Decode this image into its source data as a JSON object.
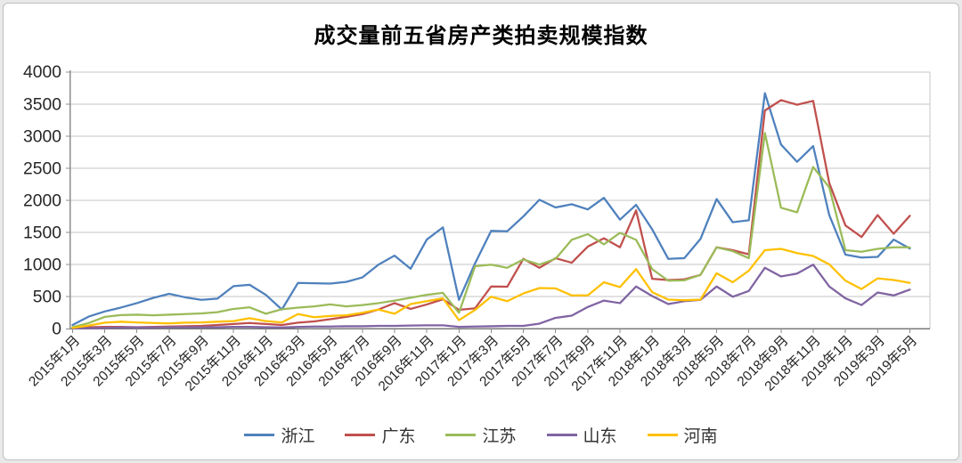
{
  "chart_data": {
    "type": "line",
    "title": "成交量前五省房产类拍卖规模指数",
    "xlabel": "",
    "ylabel": "",
    "ylim": [
      0,
      4000
    ],
    "yticks": [
      0,
      500,
      1000,
      1500,
      2000,
      2500,
      3000,
      3500,
      4000
    ],
    "grid": true,
    "legend_position": "bottom",
    "x_tick_labels": [
      "2015年1月",
      "2015年3月",
      "2015年5月",
      "2015年7月",
      "2015年9月",
      "2015年11月",
      "2016年1月",
      "2016年3月",
      "2016年5月",
      "2016年7月",
      "2016年9月",
      "2016年11月",
      "2017年1月",
      "2017年3月",
      "2017年5月",
      "2017年7月",
      "2017年9月",
      "2017年11月",
      "2018年1月",
      "2018年3月",
      "2018年5月",
      "2018年7月",
      "2018年9月",
      "2018年11月",
      "2019年1月",
      "2019年3月",
      "2019年5月"
    ],
    "x": [
      "2015年1月",
      "2015年2月",
      "2015年3月",
      "2015年4月",
      "2015年5月",
      "2015年6月",
      "2015年7月",
      "2015年8月",
      "2015年9月",
      "2015年10月",
      "2015年11月",
      "2015年12月",
      "2016年1月",
      "2016年2月",
      "2016年3月",
      "2016年4月",
      "2016年5月",
      "2016年6月",
      "2016年7月",
      "2016年8月",
      "2016年9月",
      "2016年10月",
      "2016年11月",
      "2016年12月",
      "2017年1月",
      "2017年2月",
      "2017年3月",
      "2017年4月",
      "2017年5月",
      "2017年6月",
      "2017年7月",
      "2017年8月",
      "2017年9月",
      "2017年10月",
      "2017年11月",
      "2017年12月",
      "2018年1月",
      "2018年2月",
      "2018年3月",
      "2018年4月",
      "2018年5月",
      "2018年6月",
      "2018年7月",
      "2018年8月",
      "2018年9月",
      "2018年10月",
      "2018年11月",
      "2018年12月",
      "2019年1月",
      "2019年2月",
      "2019年3月",
      "2019年4月",
      "2019年5月"
    ],
    "series": [
      {
        "name": "浙江",
        "key": "zhejiang",
        "color": "#4F81BD",
        "values": [
          60,
          190,
          270,
          330,
          400,
          480,
          545,
          490,
          450,
          470,
          665,
          685,
          530,
          300,
          715,
          710,
          705,
          730,
          800,
          1000,
          1140,
          935,
          1390,
          1580,
          450,
          1020,
          1525,
          1520,
          1750,
          2010,
          1890,
          1940,
          1860,
          2040,
          1700,
          1930,
          1550,
          1090,
          1100,
          1400,
          2020,
          1660,
          1690,
          3670,
          2870,
          2600,
          2845,
          1770,
          1155,
          1110,
          1120,
          1390,
          1250
        ]
      },
      {
        "name": "广东",
        "key": "guangdong",
        "color": "#C0504D",
        "values": [
          10,
          25,
          30,
          30,
          25,
          30,
          35,
          40,
          45,
          60,
          75,
          90,
          75,
          60,
          95,
          115,
          150,
          185,
          230,
          300,
          400,
          310,
          380,
          460,
          295,
          320,
          660,
          655,
          1090,
          950,
          1100,
          1030,
          1280,
          1410,
          1270,
          1845,
          780,
          760,
          770,
          840,
          1270,
          1225,
          1160,
          3400,
          3560,
          3490,
          3550,
          2270,
          1610,
          1430,
          1770,
          1480,
          1760
        ]
      },
      {
        "name": "江苏",
        "key": "jiangsu",
        "color": "#9BBB59",
        "values": [
          25,
          90,
          185,
          215,
          220,
          210,
          220,
          230,
          240,
          260,
          310,
          335,
          235,
          305,
          330,
          350,
          380,
          350,
          370,
          400,
          440,
          485,
          530,
          560,
          250,
          975,
          1000,
          950,
          1080,
          1000,
          1090,
          1385,
          1475,
          1315,
          1495,
          1385,
          930,
          750,
          755,
          840,
          1270,
          1210,
          1100,
          3050,
          1885,
          1815,
          2520,
          2200,
          1225,
          1200,
          1245,
          1270,
          1270
        ]
      },
      {
        "name": "山东",
        "key": "shandong",
        "color": "#8064A2",
        "values": [
          5,
          10,
          15,
          20,
          20,
          20,
          25,
          25,
          25,
          25,
          30,
          30,
          25,
          20,
          30,
          35,
          35,
          40,
          40,
          45,
          45,
          50,
          55,
          55,
          30,
          35,
          40,
          45,
          45,
          80,
          170,
          205,
          340,
          440,
          400,
          660,
          510,
          385,
          430,
          450,
          660,
          500,
          590,
          950,
          815,
          860,
          1000,
          660,
          475,
          370,
          565,
          520,
          610
        ]
      },
      {
        "name": "河南",
        "key": "henan",
        "color": "#FFC000",
        "values": [
          15,
          50,
          95,
          110,
          100,
          90,
          85,
          95,
          100,
          110,
          120,
          165,
          120,
          100,
          230,
          180,
          200,
          210,
          250,
          300,
          235,
          385,
          430,
          475,
          135,
          295,
          500,
          430,
          550,
          635,
          630,
          520,
          520,
          725,
          650,
          930,
          570,
          455,
          445,
          455,
          865,
          725,
          905,
          1225,
          1245,
          1180,
          1135,
          1005,
          750,
          620,
          785,
          760,
          715
        ]
      }
    ]
  }
}
